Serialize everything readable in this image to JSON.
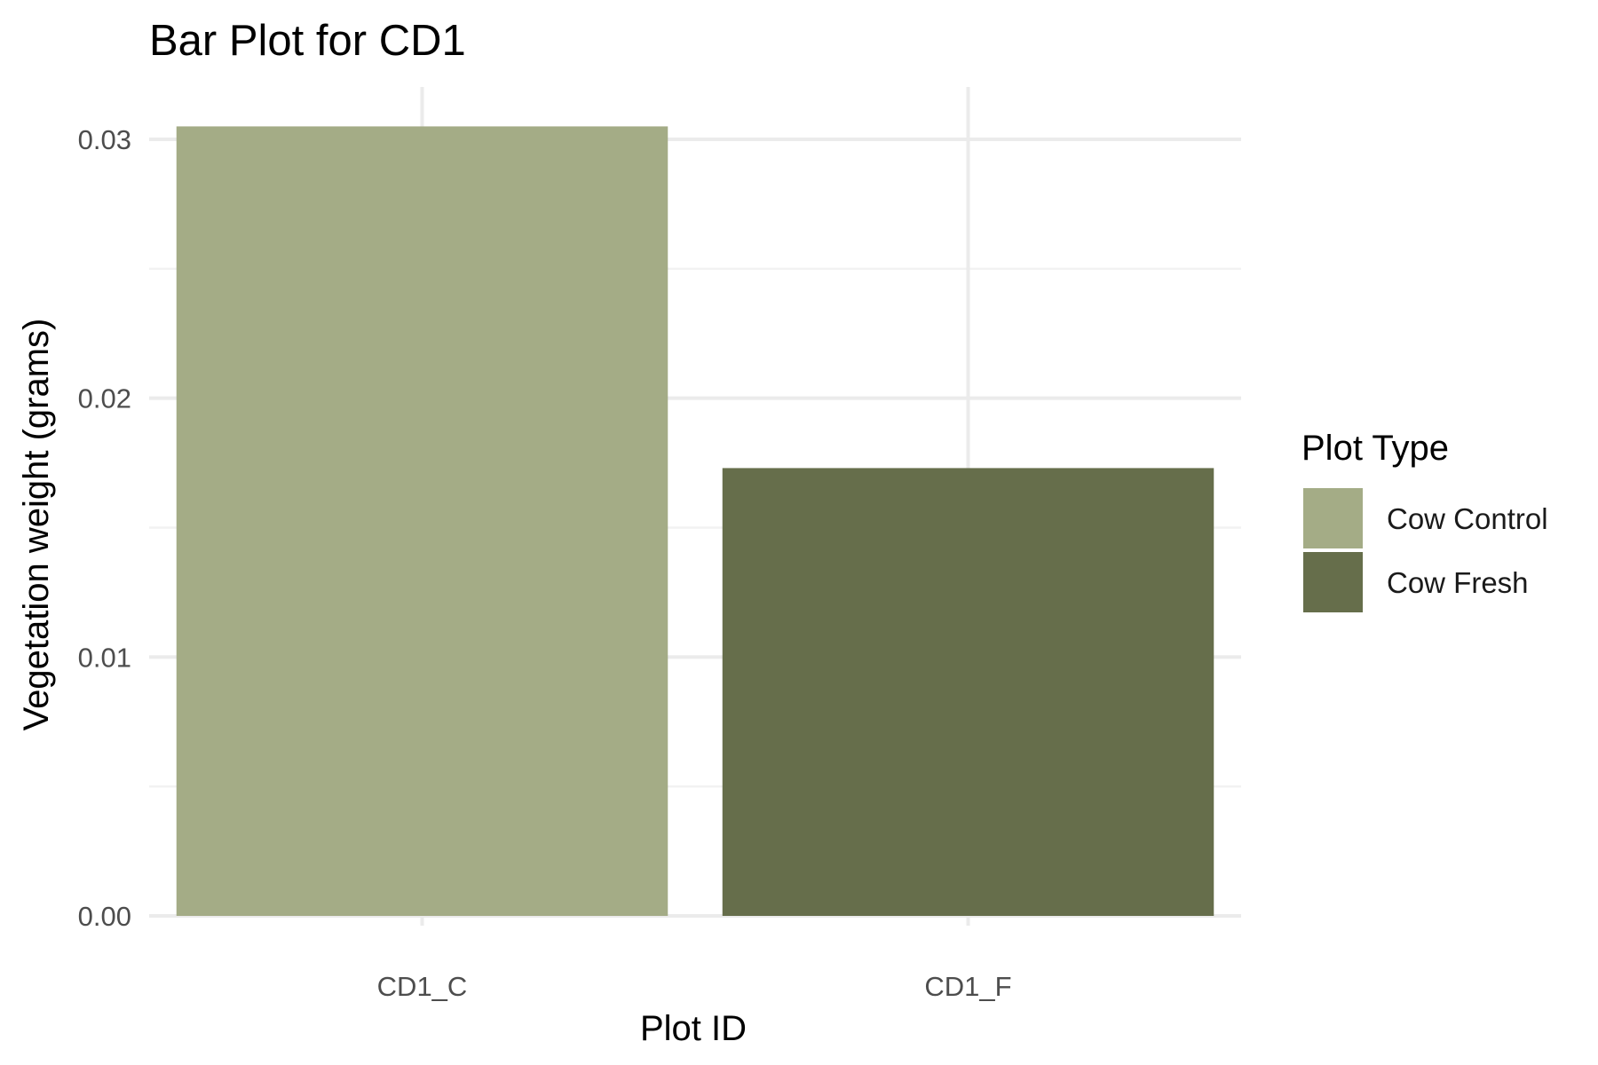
{
  "chart_data": {
    "type": "bar",
    "title": "Bar Plot for CD1",
    "xlabel": "Plot ID",
    "ylabel": "Vegetation weight (grams)",
    "categories": [
      "CD1_C",
      "CD1_F"
    ],
    "values": [
      0.0305,
      0.0173
    ],
    "bar_colors": [
      "#a4ac86",
      "#666e4b"
    ],
    "ylim": [
      0,
      0.031
    ],
    "yticks": [
      0.0,
      0.01,
      0.02,
      0.03
    ],
    "ytick_labels": [
      "0.00",
      "0.01",
      "0.02",
      "0.03"
    ],
    "grid": true,
    "legend": {
      "title": "Plot Type",
      "position": "right",
      "entries": [
        {
          "label": "Cow Control",
          "color": "#a4ac86"
        },
        {
          "label": "Cow Fresh",
          "color": "#666e4b"
        }
      ]
    }
  }
}
